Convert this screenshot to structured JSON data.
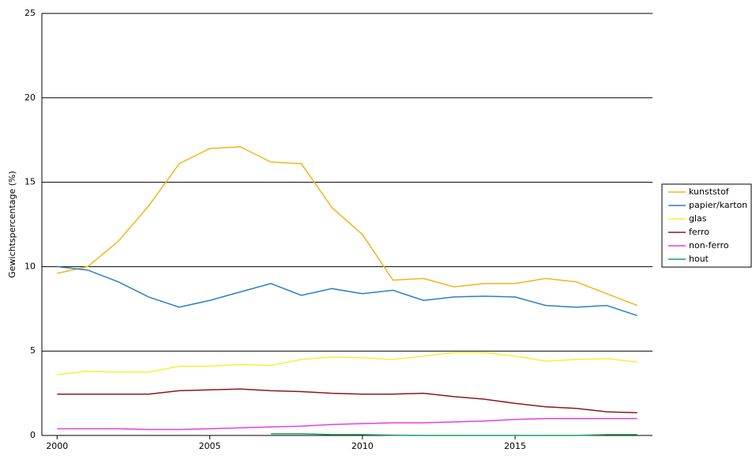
{
  "chart_data": {
    "type": "line",
    "y_label": "Gewichtspercentage (%)",
    "x": [
      2000,
      2001,
      2002,
      2003,
      2004,
      2005,
      2006,
      2007,
      2008,
      2009,
      2010,
      2011,
      2012,
      2013,
      2014,
      2015,
      2016,
      2017,
      2018,
      2019
    ],
    "xlim": [
      1999.5,
      2019.5
    ],
    "xticks": [
      2000,
      2005,
      2010,
      2015
    ],
    "ylim": [
      0,
      25
    ],
    "yticks": [
      0,
      5,
      10,
      15,
      20,
      25
    ],
    "grid": true,
    "legend": "right",
    "series": [
      {
        "name": "kunststof",
        "color": "#f2b51c",
        "values": [
          9.6,
          10.0,
          11.5,
          13.6,
          16.1,
          17.0,
          17.1,
          16.2,
          16.1,
          13.5,
          11.9,
          9.2,
          9.3,
          8.8,
          9.0,
          9.0,
          9.3,
          9.1,
          8.4,
          7.7
        ]
      },
      {
        "name": "papier/karton",
        "color": "#2a7fc8",
        "values": [
          10.0,
          9.8,
          9.1,
          8.2,
          7.6,
          8.0,
          8.5,
          9.0,
          8.3,
          8.7,
          8.4,
          8.6,
          8.0,
          8.2,
          8.25,
          8.2,
          7.7,
          7.6,
          7.7,
          7.1
        ]
      },
      {
        "name": "glas",
        "color": "#f2f23a",
        "values": [
          3.6,
          3.8,
          3.75,
          3.75,
          4.1,
          4.1,
          4.2,
          4.15,
          4.5,
          4.65,
          4.6,
          4.5,
          4.7,
          4.9,
          4.9,
          4.7,
          4.4,
          4.5,
          4.55,
          4.35
        ]
      },
      {
        "name": "ferro",
        "color": "#8b1a1a",
        "values": [
          2.45,
          2.45,
          2.45,
          2.45,
          2.65,
          2.7,
          2.75,
          2.65,
          2.6,
          2.5,
          2.45,
          2.45,
          2.5,
          2.3,
          2.15,
          1.9,
          1.7,
          1.6,
          1.4,
          1.35
        ]
      },
      {
        "name": "non-ferro",
        "color": "#e83ce8",
        "values": [
          0.4,
          0.4,
          0.4,
          0.35,
          0.35,
          0.4,
          0.45,
          0.5,
          0.55,
          0.65,
          0.7,
          0.75,
          0.75,
          0.8,
          0.85,
          0.95,
          1.0,
          1.0,
          1.0,
          1.0
        ]
      },
      {
        "name": "hout",
        "color": "#1aa05a",
        "values": [
          null,
          null,
          null,
          null,
          null,
          null,
          null,
          0.1,
          0.1,
          0.05,
          0.05,
          0.02,
          0,
          0,
          0,
          0,
          0,
          0,
          0.05,
          0.05
        ]
      }
    ]
  }
}
